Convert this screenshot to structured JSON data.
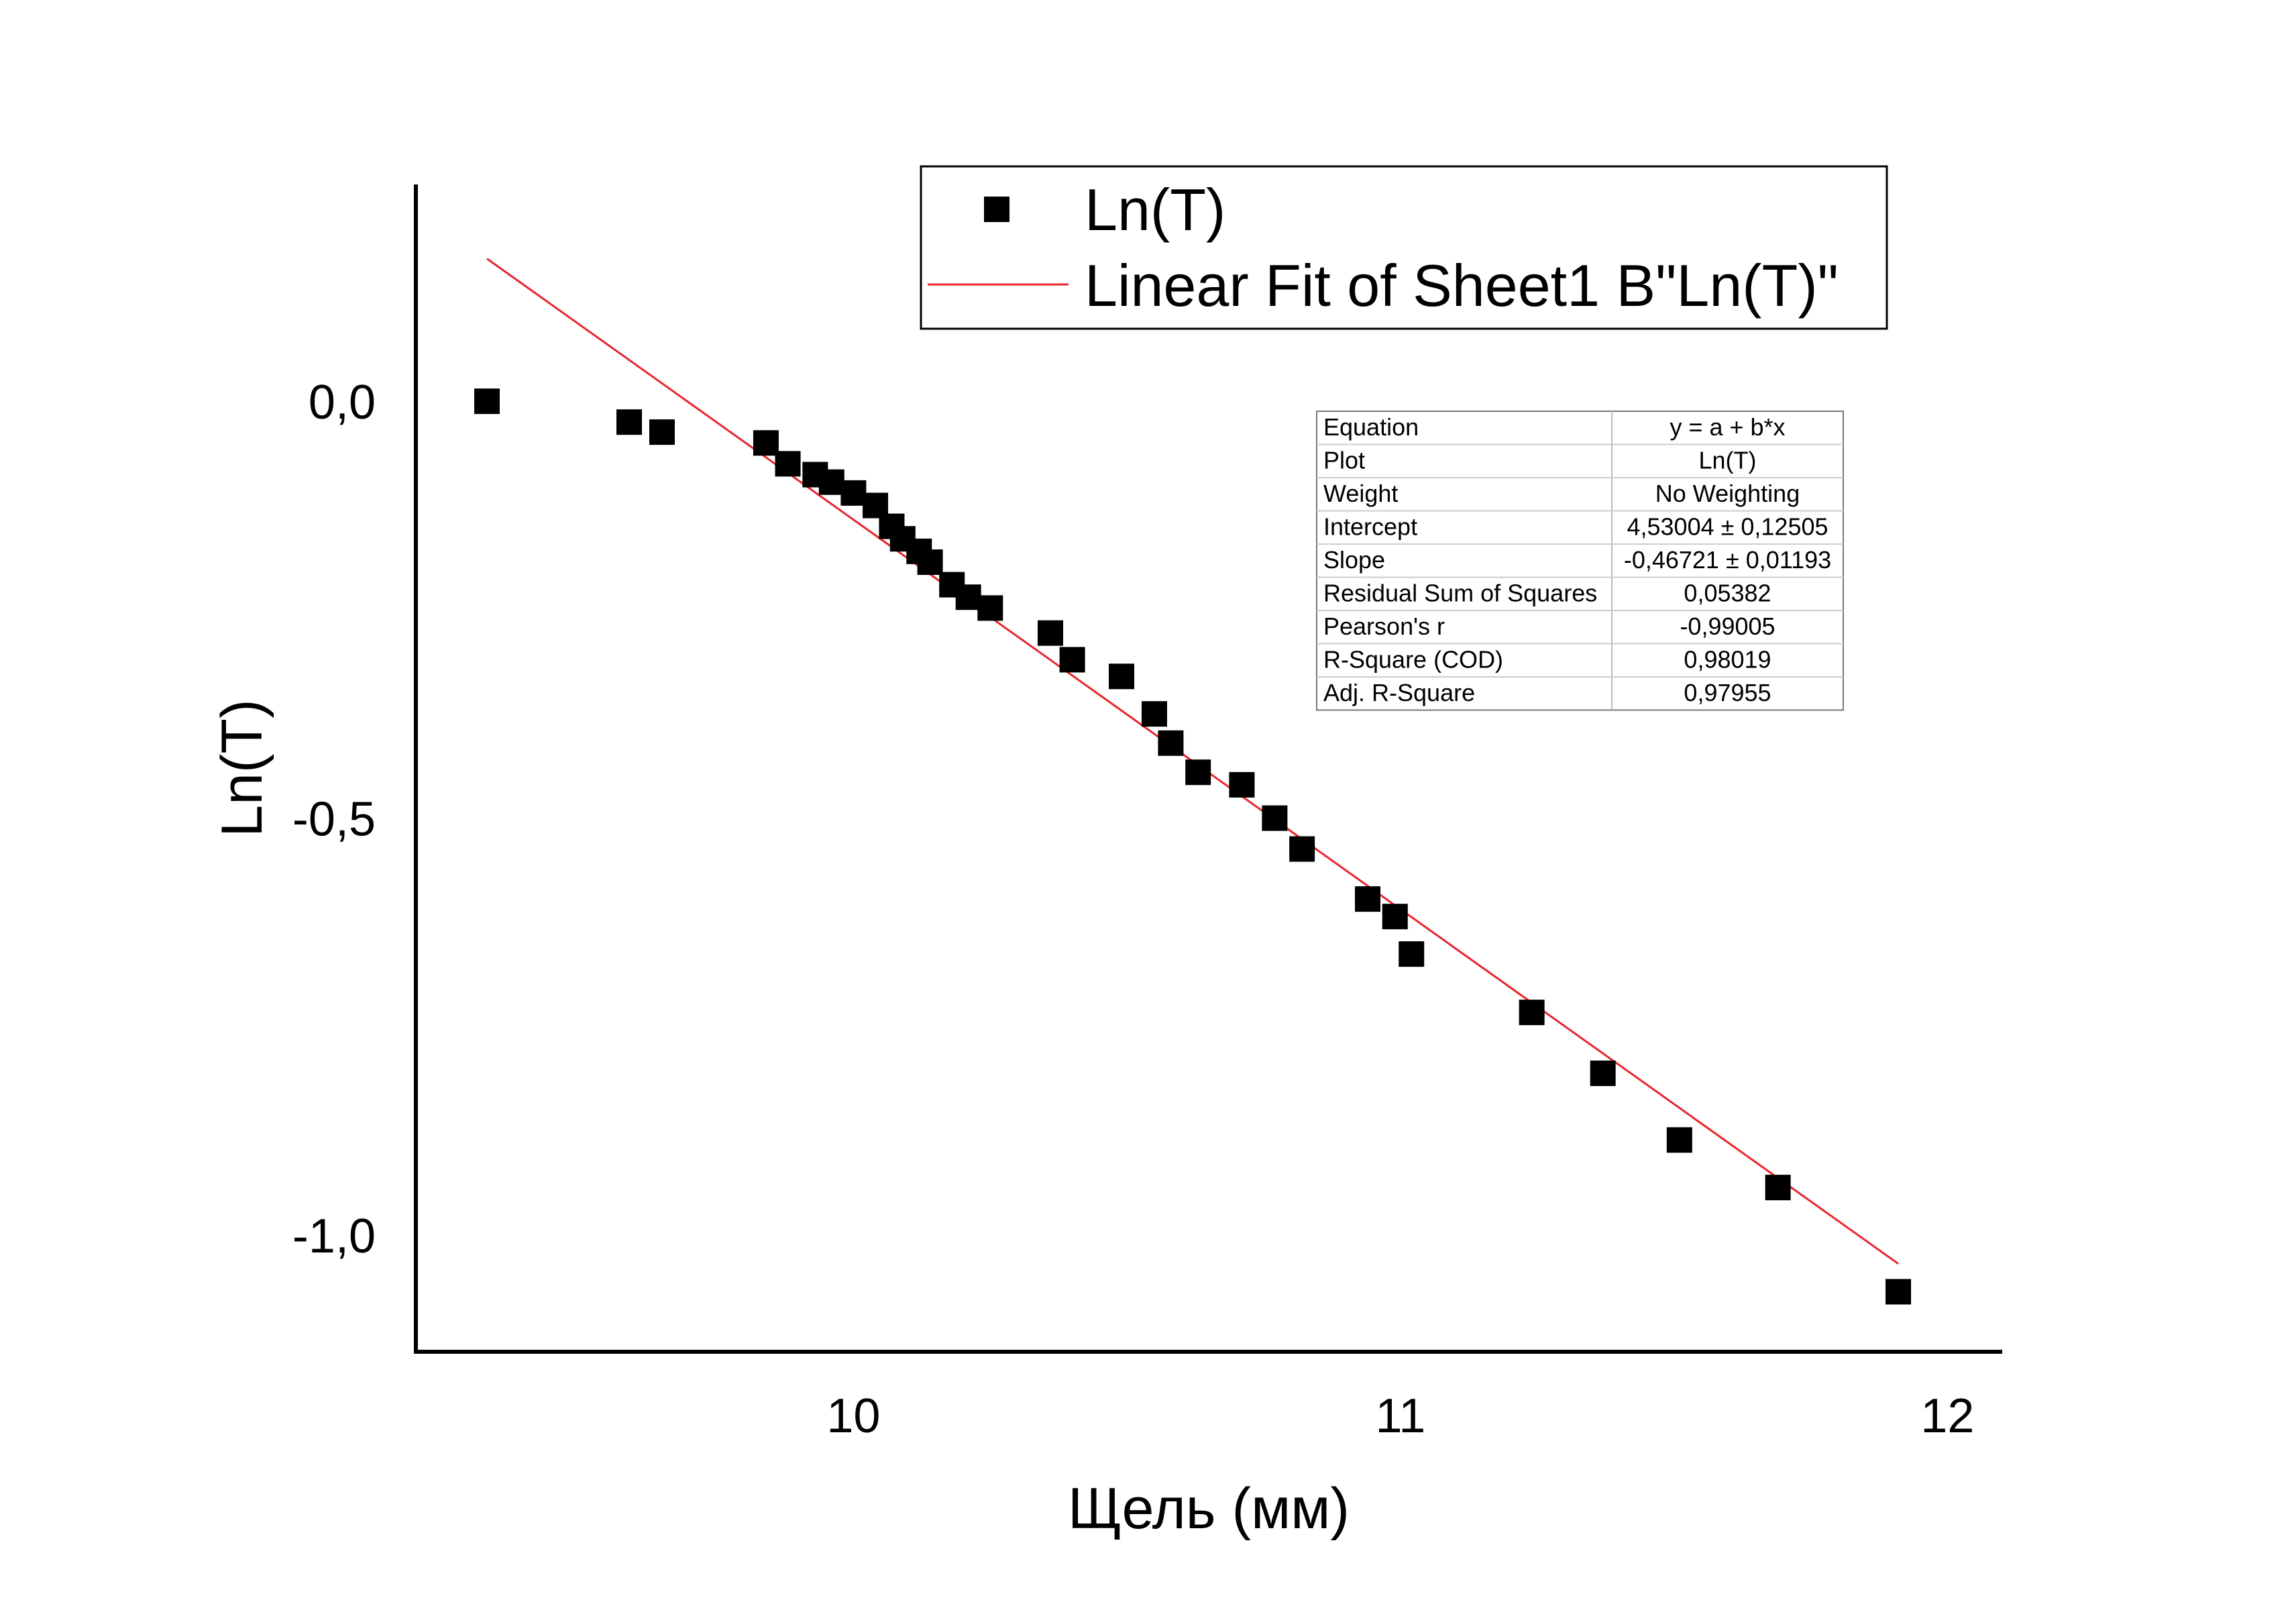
{
  "chart_data": {
    "type": "scatter",
    "title": "",
    "xlabel": "Щель (мм)",
    "ylabel": "Ln(T)",
    "xlim": [
      9.2,
      12.1
    ],
    "ylim": [
      -1.14,
      0.26
    ],
    "x_ticks": [
      {
        "value": 10,
        "label": "10"
      },
      {
        "value": 11,
        "label": "11"
      },
      {
        "value": 12,
        "label": "12"
      }
    ],
    "y_ticks": [
      {
        "value": 0.0,
        "label": "0,0"
      },
      {
        "value": -0.5,
        "label": "-0,5"
      },
      {
        "value": -1.0,
        "label": "-1,0"
      }
    ],
    "grid": false,
    "legend_position": "top-right",
    "series": [
      {
        "name": "Ln(T)",
        "kind": "scatter",
        "marker": "square",
        "color": "#000000",
        "points": [
          [
            9.33,
            0.0
          ],
          [
            9.59,
            -0.025
          ],
          [
            9.65,
            -0.037
          ],
          [
            9.84,
            -0.05
          ],
          [
            9.88,
            -0.075
          ],
          [
            9.93,
            -0.088
          ],
          [
            9.96,
            -0.097
          ],
          [
            10.0,
            -0.11
          ],
          [
            10.04,
            -0.125
          ],
          [
            10.07,
            -0.15
          ],
          [
            10.09,
            -0.165
          ],
          [
            10.12,
            -0.18
          ],
          [
            10.14,
            -0.193
          ],
          [
            10.18,
            -0.22
          ],
          [
            10.21,
            -0.235
          ],
          [
            10.25,
            -0.248
          ],
          [
            10.36,
            -0.278
          ],
          [
            10.4,
            -0.31
          ],
          [
            10.49,
            -0.33
          ],
          [
            10.55,
            -0.375
          ],
          [
            10.58,
            -0.41
          ],
          [
            10.63,
            -0.445
          ],
          [
            10.71,
            -0.46
          ],
          [
            10.77,
            -0.5
          ],
          [
            10.82,
            -0.537
          ],
          [
            10.94,
            -0.597
          ],
          [
            10.99,
            -0.618
          ],
          [
            11.02,
            -0.663
          ],
          [
            11.24,
            -0.733
          ],
          [
            11.37,
            -0.806
          ],
          [
            11.51,
            -0.886
          ],
          [
            11.69,
            -0.943
          ],
          [
            11.91,
            -1.068
          ]
        ]
      },
      {
        "name": "Linear Fit of Sheet1 B\"Ln(T)\"",
        "kind": "line",
        "color": "#e8262b",
        "intercept": 4.53004,
        "slope": -0.46721,
        "x_range": [
          9.33,
          11.91
        ]
      }
    ],
    "stats_table": [
      {
        "label": "Equation",
        "value": "y = a + b*x"
      },
      {
        "label": "Plot",
        "value": "Ln(T)"
      },
      {
        "label": "Weight",
        "value": "No Weighting"
      },
      {
        "label": "Intercept",
        "value": "4,53004 ± 0,12505"
      },
      {
        "label": "Slope",
        "value": "-0,46721 ± 0,01193"
      },
      {
        "label": "Residual Sum of Squares",
        "value": "0,05382"
      },
      {
        "label": "Pearson's r",
        "value": "-0,99005"
      },
      {
        "label": "R-Square (COD)",
        "value": "0,98019"
      },
      {
        "label": "Adj. R-Square",
        "value": "0,97955"
      }
    ]
  }
}
